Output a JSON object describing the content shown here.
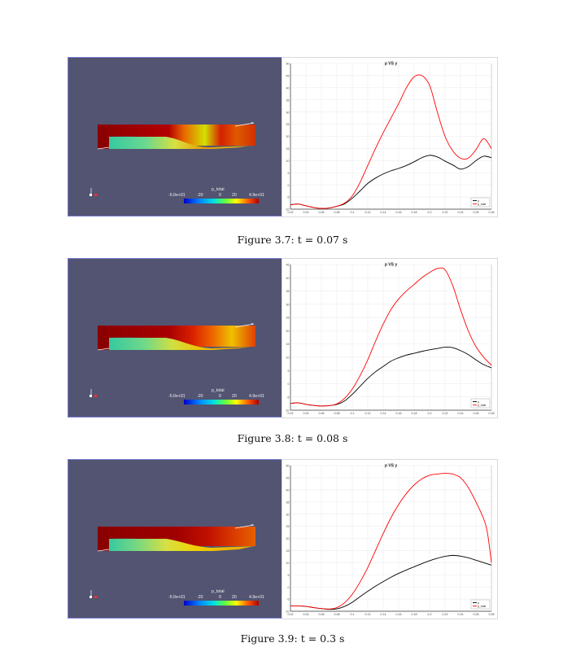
{
  "figures": [
    {
      "caption": "Figure 3.7: t = 0.07 s",
      "colorbar": {
        "title": "p_total",
        "labels": [
          "-5.0e+01",
          "-20",
          "0",
          "20",
          "4.9e+01"
        ]
      },
      "chart_data": {
        "type": "line",
        "title": "p VS y",
        "xlabel": "",
        "ylabel": "",
        "xlim": [
          0.02,
          0.28
        ],
        "ylim": [
          -10,
          50
        ],
        "xticks": [
          "0.02",
          "0.04",
          "0.06",
          "0.08",
          "0.1",
          "0.12",
          "0.14",
          "0.16",
          "0.18",
          "0.2",
          "0.22",
          "0.24",
          "0.26",
          "0.28"
        ],
        "yticks": [
          "-10",
          "-5",
          "0",
          "5",
          "10",
          "15",
          "20",
          "25",
          "30",
          "35",
          "40",
          "45",
          "50"
        ],
        "legend": "bottom-right",
        "grid": true,
        "series": [
          {
            "name": "p",
            "color": "#000000",
            "x": [
              0.02,
              0.03,
              0.04,
              0.05,
              0.06,
              0.07,
              0.08,
              0.09,
              0.1,
              0.11,
              0.12,
              0.13,
              0.14,
              0.15,
              0.16,
              0.17,
              0.18,
              0.19,
              0.2,
              0.21,
              0.22,
              0.23,
              0.24,
              0.25,
              0.26,
              0.27,
              0.28
            ],
            "y": [
              -8.2,
              -7.9,
              -8.6,
              -9.3,
              -9.7,
              -9.5,
              -8.8,
              -7.8,
              -5.5,
              -2.5,
              0.6,
              2.8,
              4.5,
              5.8,
              6.8,
              8.0,
              9.5,
              11.2,
              12.2,
              11.5,
              9.8,
              8.2,
              6.5,
              7.5,
              10.0,
              11.8,
              11.2
            ]
          },
          {
            "name": "p_total",
            "color": "#ff0000",
            "x": [
              0.02,
              0.03,
              0.04,
              0.05,
              0.06,
              0.07,
              0.08,
              0.09,
              0.1,
              0.11,
              0.12,
              0.13,
              0.14,
              0.15,
              0.16,
              0.17,
              0.18,
              0.19,
              0.2,
              0.21,
              0.22,
              0.23,
              0.24,
              0.25,
              0.26,
              0.27,
              0.28
            ],
            "y": [
              -8.2,
              -7.9,
              -8.6,
              -9.3,
              -9.7,
              -9.5,
              -8.8,
              -7.5,
              -4.5,
              1.0,
              8.0,
              15.0,
              21.5,
              27.5,
              33.5,
              40.0,
              44.5,
              45.0,
              41.0,
              30.0,
              20.0,
              14.0,
              11.0,
              11.0,
              14.5,
              19.0,
              15.0
            ]
          }
        ]
      }
    },
    {
      "caption": "Figure 3.8: t = 0.08 s",
      "colorbar": {
        "title": "p_total",
        "labels": [
          "-5.0e+01",
          "-20",
          "0",
          "20",
          "4.9e+01"
        ]
      },
      "chart_data": {
        "type": "line",
        "title": "p VS y",
        "xlabel": "",
        "ylabel": "",
        "xlim": [
          0.02,
          0.28
        ],
        "ylim": [
          -10,
          45
        ],
        "xticks": [
          "0.02",
          "0.04",
          "0.06",
          "0.08",
          "0.1",
          "0.12",
          "0.14",
          "0.16",
          "0.18",
          "0.2",
          "0.22",
          "0.24",
          "0.26",
          "0.28"
        ],
        "yticks": [
          "-10",
          "-5",
          "0",
          "5",
          "10",
          "15",
          "20",
          "25",
          "30",
          "35",
          "40",
          "45"
        ],
        "legend": "bottom-right",
        "grid": true,
        "series": [
          {
            "name": "p",
            "color": "#000000",
            "x": [
              0.02,
              0.03,
              0.04,
              0.05,
              0.06,
              0.07,
              0.08,
              0.09,
              0.1,
              0.11,
              0.12,
              0.13,
              0.14,
              0.15,
              0.16,
              0.17,
              0.18,
              0.19,
              0.2,
              0.21,
              0.22,
              0.23,
              0.24,
              0.25,
              0.26,
              0.27,
              0.28
            ],
            "y": [
              -7.5,
              -7.2,
              -7.8,
              -8.2,
              -8.4,
              -8.3,
              -7.8,
              -6.5,
              -4.0,
              -1.0,
              2.0,
              4.5,
              6.5,
              8.5,
              9.8,
              10.8,
              11.5,
              12.2,
              12.8,
              13.3,
              13.8,
              13.6,
              12.5,
              11.0,
              9.0,
              7.2,
              6.0
            ]
          },
          {
            "name": "p_total",
            "color": "#ff0000",
            "x": [
              0.02,
              0.03,
              0.04,
              0.05,
              0.06,
              0.07,
              0.08,
              0.09,
              0.1,
              0.11,
              0.12,
              0.13,
              0.14,
              0.15,
              0.16,
              0.17,
              0.18,
              0.19,
              0.2,
              0.21,
              0.22,
              0.23,
              0.24,
              0.25,
              0.26,
              0.27,
              0.28
            ],
            "y": [
              -7.5,
              -7.2,
              -7.8,
              -8.2,
              -8.4,
              -8.3,
              -7.6,
              -5.5,
              -2.0,
              3.0,
              9.0,
              16.0,
              22.5,
              28.0,
              32.0,
              35.0,
              37.5,
              40.0,
              42.0,
              43.5,
              43.0,
              37.0,
              28.0,
              20.0,
              14.0,
              10.0,
              7.0
            ]
          }
        ]
      }
    },
    {
      "caption": "Figure 3.9: t = 0.3 s",
      "colorbar": {
        "title": "p_total",
        "labels": [
          "-5.0e+01",
          "-20",
          "0",
          "20",
          "4.9e+01"
        ]
      },
      "chart_data": {
        "type": "line",
        "title": "p VS y",
        "xlabel": "",
        "ylabel": "",
        "xlim": [
          0.02,
          0.28
        ],
        "ylim": [
          -10,
          50
        ],
        "xticks": [
          "0.02",
          "0.04",
          "0.06",
          "0.08",
          "0.1",
          "0.12",
          "0.14",
          "0.16",
          "0.18",
          "0.2",
          "0.22",
          "0.24",
          "0.26",
          "0.28"
        ],
        "yticks": [
          "-10",
          "-5",
          "0",
          "5",
          "10",
          "15",
          "20",
          "25",
          "30",
          "35",
          "40",
          "45",
          "50"
        ],
        "legend": "bottom-right",
        "grid": true,
        "series": [
          {
            "name": "p",
            "color": "#000000",
            "x": [
              0.02,
              0.03,
              0.04,
              0.05,
              0.06,
              0.07,
              0.08,
              0.09,
              0.1,
              0.11,
              0.12,
              0.13,
              0.14,
              0.15,
              0.16,
              0.17,
              0.18,
              0.19,
              0.2,
              0.21,
              0.22,
              0.23,
              0.24,
              0.25,
              0.26,
              0.27,
              0.28
            ],
            "y": [
              -7.8,
              -7.8,
              -8.0,
              -8.5,
              -8.9,
              -9.2,
              -9.0,
              -8.0,
              -6.3,
              -4.0,
              -1.8,
              0.3,
              2.2,
              4.0,
              5.6,
              7.0,
              8.3,
              9.6,
              10.8,
              11.8,
              12.6,
              13.0,
              12.7,
              12.0,
              11.0,
              10.0,
              9.0
            ]
          },
          {
            "name": "p_total",
            "color": "#ff0000",
            "x": [
              0.02,
              0.03,
              0.04,
              0.05,
              0.06,
              0.07,
              0.08,
              0.09,
              0.1,
              0.11,
              0.12,
              0.13,
              0.14,
              0.15,
              0.16,
              0.17,
              0.18,
              0.19,
              0.2,
              0.21,
              0.22,
              0.23,
              0.24,
              0.25,
              0.26,
              0.27,
              0.275,
              0.28
            ],
            "y": [
              -7.8,
              -7.8,
              -8.0,
              -8.5,
              -8.9,
              -9.1,
              -8.5,
              -6.5,
              -3.0,
              2.0,
              8.0,
              15.0,
              22.0,
              28.5,
              34.0,
              38.5,
              42.0,
              44.5,
              46.0,
              46.5,
              46.8,
              46.5,
              45.0,
              41.0,
              35.0,
              28.0,
              22.0,
              10.0
            ]
          }
        ]
      }
    }
  ]
}
